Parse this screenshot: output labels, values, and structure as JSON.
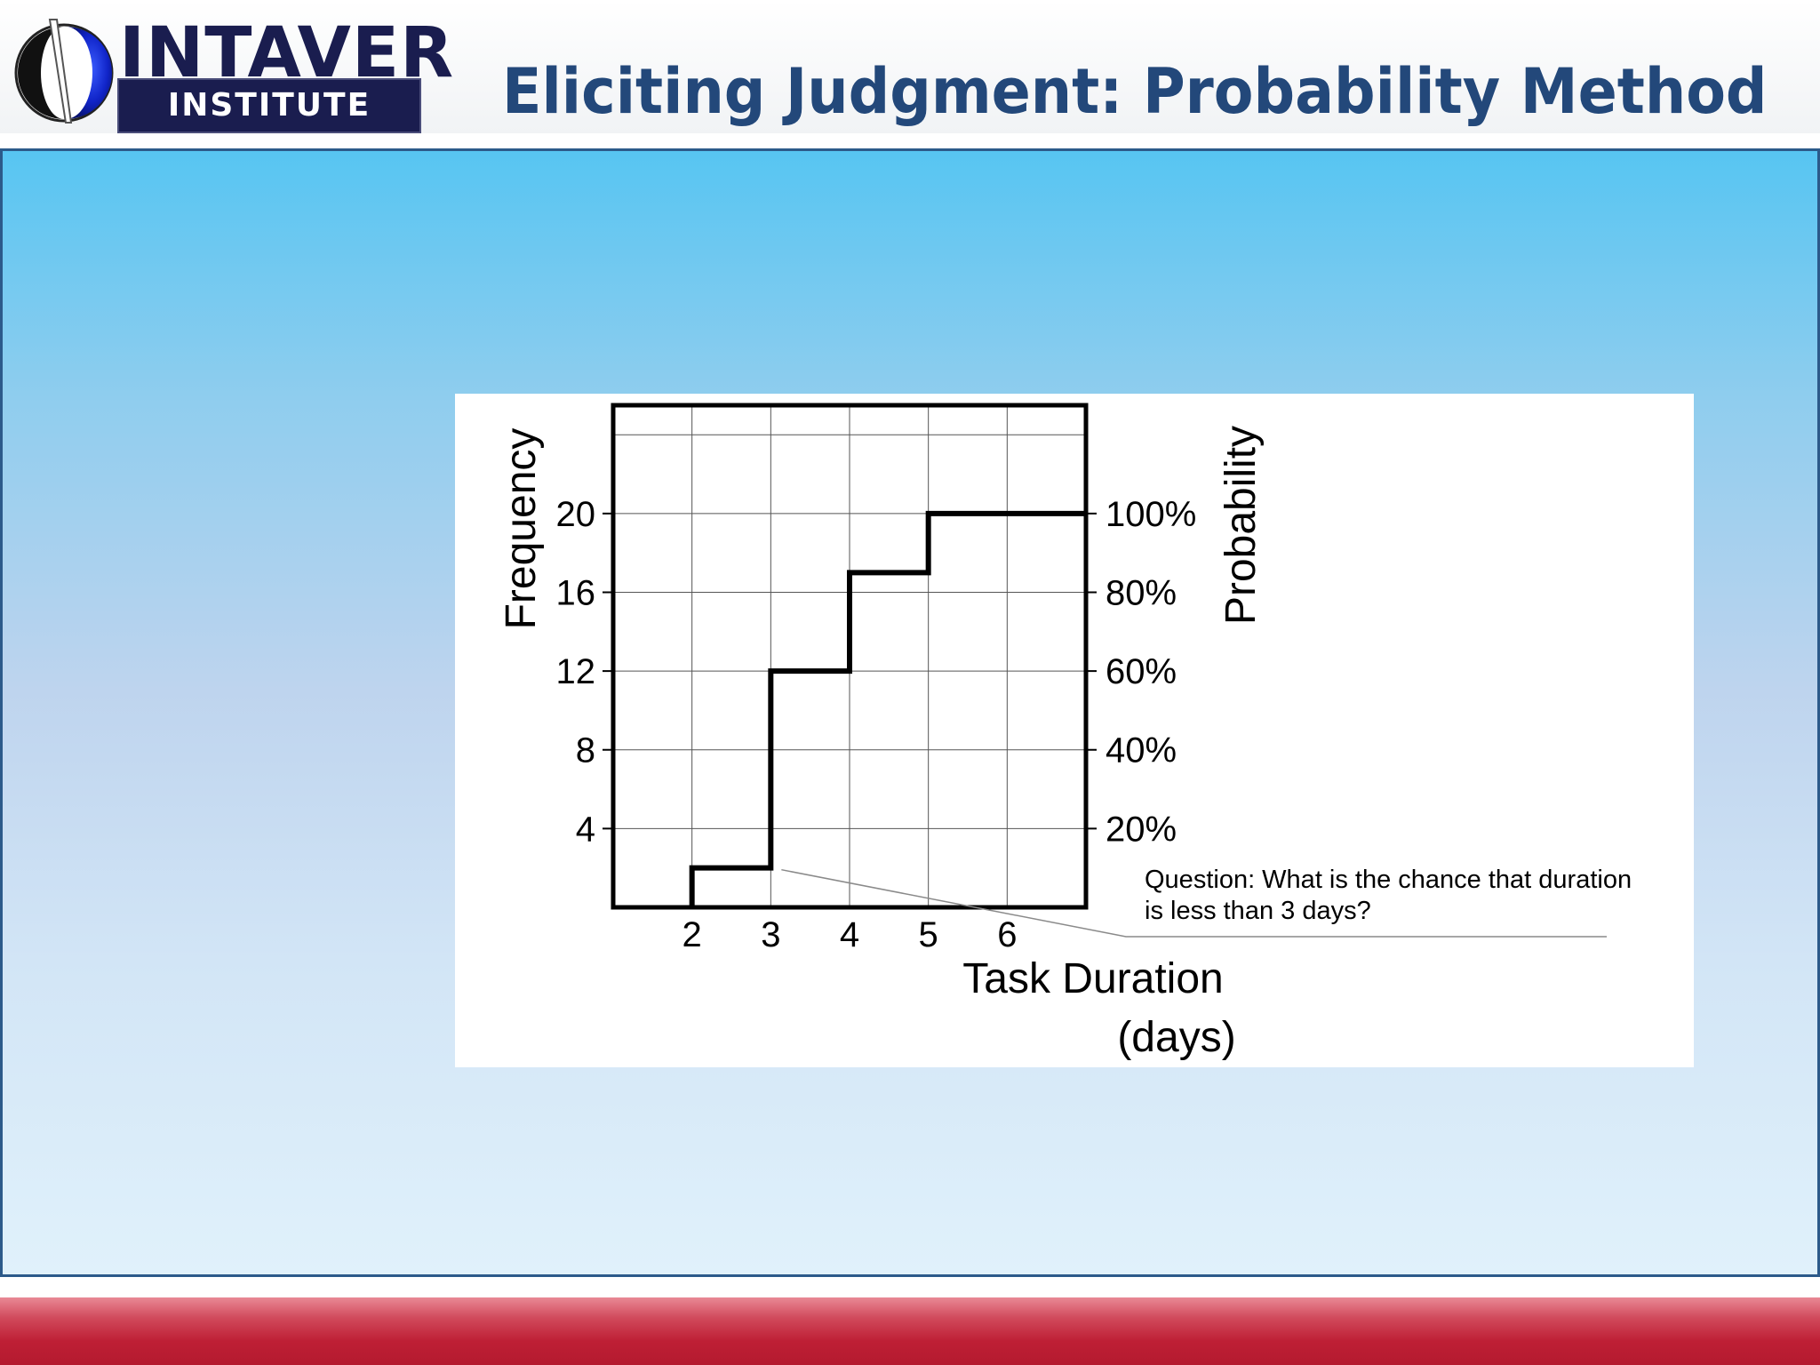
{
  "header": {
    "logo_name": "INTAVER",
    "logo_sub": "INSTITUTE",
    "title": "Eliciting Judgment: Probability Method"
  },
  "chart_data": {
    "type": "line",
    "step": true,
    "xlabel": "Task Duration",
    "xlabel_units": "(days)",
    "ylabel_left": "Frequency",
    "ylabel_right": "Probability",
    "x_ticks": [
      2,
      3,
      4,
      5,
      6
    ],
    "x_tick_labels": [
      "2",
      "3",
      "4",
      "5",
      "6"
    ],
    "y_ticks": [
      4,
      8,
      12,
      16,
      20
    ],
    "y_tick_labels": [
      "4",
      "8",
      "12",
      "16",
      "20"
    ],
    "y2_ticks": [
      4,
      8,
      12,
      16,
      20
    ],
    "y2_tick_labels": [
      "20%",
      "40%",
      "60%",
      "80%",
      "100%"
    ],
    "xlim": [
      1,
      7
    ],
    "ylim": [
      0,
      25.5
    ],
    "grid": true,
    "series": [
      {
        "x": [
          2,
          2,
          3,
          3,
          4,
          4,
          5,
          5,
          7
        ],
        "y": [
          0,
          2,
          2,
          12,
          12,
          17,
          17,
          20,
          20
        ]
      }
    ],
    "annotation": {
      "lines": [
        "Question: What is the chance that duration",
        "is less than 3 days?"
      ],
      "point": [
        3,
        2
      ]
    }
  }
}
